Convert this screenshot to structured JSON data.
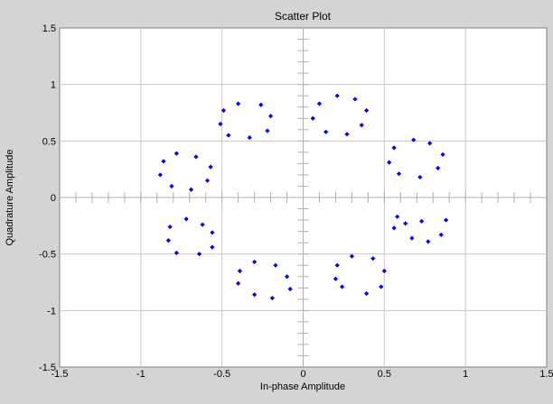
{
  "chart_data": {
    "type": "scatter",
    "title": "Scatter Plot",
    "xlabel": "In-phase Amplitude",
    "ylabel": "Quadrature Amplitude",
    "xlim": [
      -1.5,
      1.5
    ],
    "ylim": [
      -1.5,
      1.5
    ],
    "xticks": [
      -1.5,
      -1,
      -0.5,
      0,
      0.5,
      1,
      1.5
    ],
    "yticks": [
      -1.5,
      -1,
      -0.5,
      0,
      0.5,
      1,
      1.5
    ],
    "xtick_labels": [
      "-1.5",
      "-1",
      "-0.5",
      "0",
      "0.5",
      "1",
      "1.5"
    ],
    "ytick_labels": [
      "-1.5",
      "-1",
      "-0.5",
      "0",
      "0.5",
      "1",
      "1.5"
    ],
    "grid": true,
    "colors": {
      "points": "#0000ff",
      "background": "#d4d4d4",
      "plot_area": "#ffffff",
      "grid": "#c8c8c8"
    },
    "series": [
      {
        "values": [
          [
            0.21,
            0.9
          ],
          [
            0.32,
            0.87
          ],
          [
            0.39,
            0.77
          ],
          [
            0.36,
            0.64
          ],
          [
            0.27,
            0.56
          ],
          [
            0.14,
            0.58
          ],
          [
            0.06,
            0.7
          ],
          [
            0.1,
            0.83
          ],
          [
            0.68,
            0.51
          ],
          [
            0.78,
            0.48
          ],
          [
            0.86,
            0.38
          ],
          [
            0.83,
            0.26
          ],
          [
            0.72,
            0.18
          ],
          [
            0.59,
            0.21
          ],
          [
            0.53,
            0.31
          ],
          [
            0.56,
            0.44
          ],
          [
            0.58,
            -0.17
          ],
          [
            0.73,
            -0.21
          ],
          [
            0.85,
            -0.33
          ],
          [
            0.77,
            -0.39
          ],
          [
            0.67,
            -0.36
          ],
          [
            0.56,
            -0.27
          ],
          [
            0.63,
            -0.23
          ],
          [
            0.88,
            -0.2
          ],
          [
            0.3,
            -0.52
          ],
          [
            0.43,
            -0.54
          ],
          [
            0.5,
            -0.65
          ],
          [
            0.48,
            -0.79
          ],
          [
            0.39,
            -0.85
          ],
          [
            0.24,
            -0.79
          ],
          [
            0.2,
            -0.72
          ],
          [
            0.21,
            -0.6
          ],
          [
            -0.3,
            -0.57
          ],
          [
            -0.17,
            -0.6
          ],
          [
            -0.1,
            -0.7
          ],
          [
            -0.08,
            -0.81
          ],
          [
            -0.19,
            -0.89
          ],
          [
            -0.3,
            -0.86
          ],
          [
            -0.4,
            -0.76
          ],
          [
            -0.39,
            -0.65
          ],
          [
            -0.72,
            -0.19
          ],
          [
            -0.62,
            -0.24
          ],
          [
            -0.56,
            -0.31
          ],
          [
            -0.56,
            -0.44
          ],
          [
            -0.64,
            -0.5
          ],
          [
            -0.78,
            -0.49
          ],
          [
            -0.83,
            -0.38
          ],
          [
            -0.82,
            -0.26
          ],
          [
            -0.78,
            0.39
          ],
          [
            -0.66,
            0.36
          ],
          [
            -0.57,
            0.27
          ],
          [
            -0.59,
            0.15
          ],
          [
            -0.69,
            0.07
          ],
          [
            -0.81,
            0.1
          ],
          [
            -0.88,
            0.2
          ],
          [
            -0.86,
            0.32
          ],
          [
            -0.4,
            0.83
          ],
          [
            -0.26,
            0.82
          ],
          [
            -0.2,
            0.72
          ],
          [
            -0.22,
            0.59
          ],
          [
            -0.33,
            0.53
          ],
          [
            -0.46,
            0.55
          ],
          [
            -0.51,
            0.65
          ],
          [
            -0.49,
            0.77
          ]
        ]
      }
    ]
  }
}
